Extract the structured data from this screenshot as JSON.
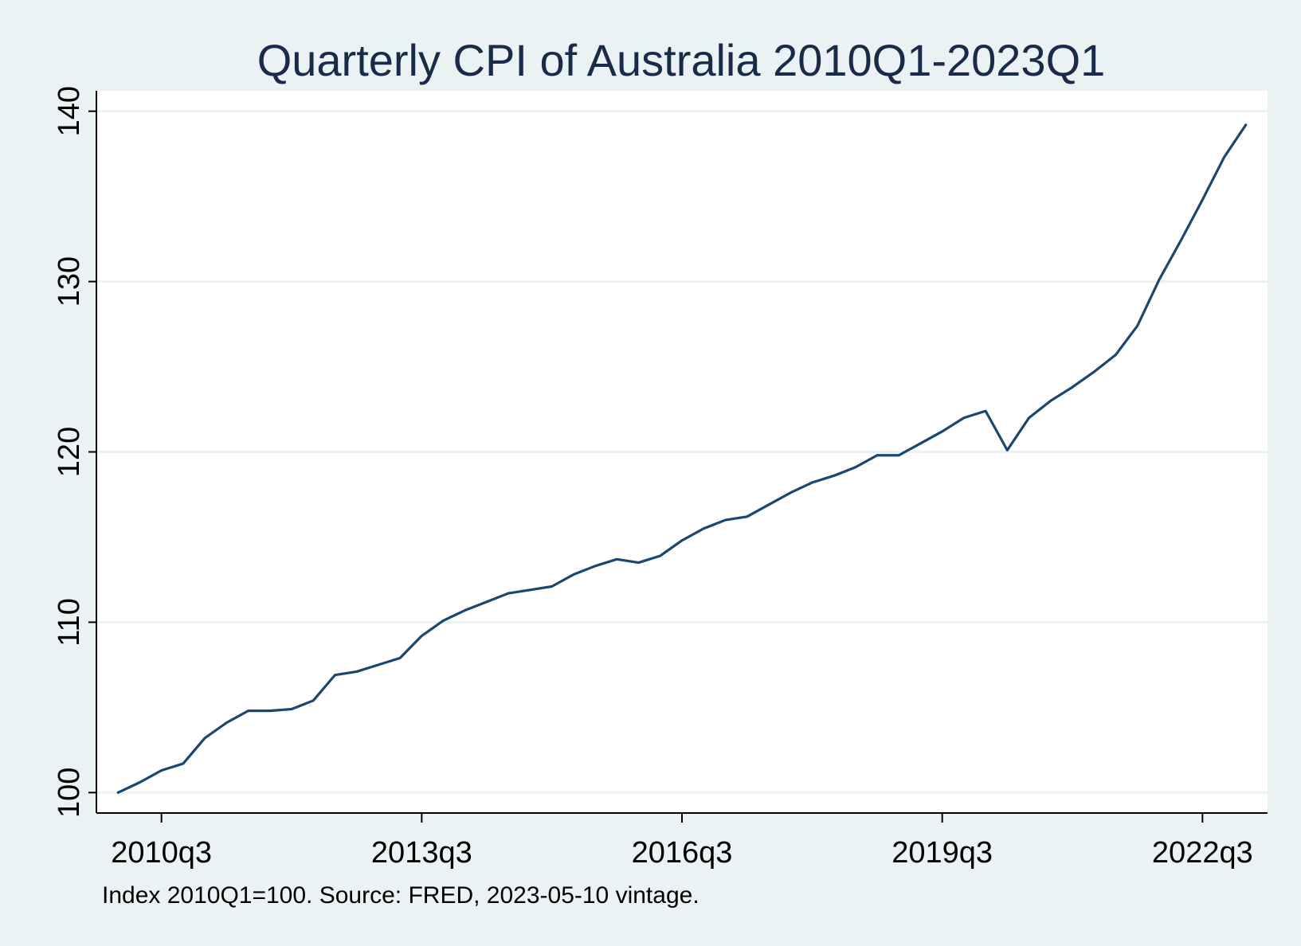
{
  "chart_data": {
    "type": "line",
    "title": "Quarterly CPI of Australia 2010Q1-2023Q1",
    "note": "Index 2010Q1=100. Source: FRED, 2023-05-10 vintage.",
    "xlabel": "",
    "ylabel": "",
    "x_ticks": [
      "2010q3",
      "2013q3",
      "2016q3",
      "2019q3",
      "2022q3"
    ],
    "y_ticks": [
      "100",
      "110",
      "120",
      "130",
      "140"
    ],
    "ylim": [
      98.8,
      141.2
    ],
    "xlim": [
      "2009q4",
      "2023q2"
    ],
    "grid": true,
    "legend": "none",
    "colors": {
      "line": "#1a476f",
      "plot_bg": "#ffffff",
      "page_bg": "#eaf2f3",
      "grid": "#eaf2f3"
    },
    "series": [
      {
        "x": [
          "2010q1",
          "2010q2",
          "2010q3",
          "2010q4",
          "2011q1",
          "2011q2",
          "2011q3",
          "2011q4",
          "2012q1",
          "2012q2",
          "2012q3",
          "2012q4",
          "2013q1",
          "2013q2",
          "2013q3",
          "2013q4",
          "2014q1",
          "2014q2",
          "2014q3",
          "2014q4",
          "2015q1",
          "2015q2",
          "2015q3",
          "2015q4",
          "2016q1",
          "2016q2",
          "2016q3",
          "2016q4",
          "2017q1",
          "2017q2",
          "2017q3",
          "2017q4",
          "2018q1",
          "2018q2",
          "2018q3",
          "2018q4",
          "2019q1",
          "2019q2",
          "2019q3",
          "2019q4",
          "2020q1",
          "2020q2",
          "2020q3",
          "2020q4",
          "2021q1",
          "2021q2",
          "2021q3",
          "2021q4",
          "2022q1",
          "2022q2",
          "2022q3",
          "2022q4",
          "2023q1"
        ],
        "values": [
          100.0,
          100.6,
          101.3,
          101.7,
          103.2,
          104.1,
          104.8,
          104.8,
          104.9,
          105.4,
          106.9,
          107.1,
          107.5,
          107.9,
          109.2,
          110.1,
          110.7,
          111.2,
          111.7,
          111.9,
          112.1,
          112.8,
          113.3,
          113.7,
          113.5,
          113.9,
          114.8,
          115.5,
          116.0,
          116.2,
          116.9,
          117.6,
          118.2,
          118.6,
          119.1,
          119.8,
          119.8,
          120.5,
          121.2,
          122.0,
          122.4,
          120.1,
          122.0,
          123.0,
          123.8,
          124.7,
          125.7,
          127.4,
          130.1,
          132.4,
          134.8,
          137.3,
          139.2
        ]
      }
    ]
  }
}
